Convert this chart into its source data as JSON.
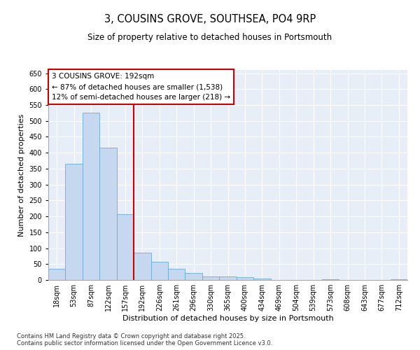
{
  "title": "3, COUSINS GROVE, SOUTHSEA, PO4 9RP",
  "subtitle": "Size of property relative to detached houses in Portsmouth",
  "xlabel": "Distribution of detached houses by size in Portsmouth",
  "ylabel": "Number of detached properties",
  "categories": [
    "18sqm",
    "53sqm",
    "87sqm",
    "122sqm",
    "157sqm",
    "192sqm",
    "226sqm",
    "261sqm",
    "296sqm",
    "330sqm",
    "365sqm",
    "400sqm",
    "434sqm",
    "469sqm",
    "504sqm",
    "539sqm",
    "573sqm",
    "608sqm",
    "643sqm",
    "677sqm",
    "712sqm"
  ],
  "values": [
    35,
    365,
    525,
    415,
    207,
    85,
    57,
    35,
    22,
    10,
    10,
    8,
    5,
    0,
    0,
    0,
    3,
    0,
    0,
    0,
    3
  ],
  "bar_color": "#c5d8f0",
  "bar_edge_color": "#6aaad4",
  "annotation_label": "3 COUSINS GROVE: 192sqm",
  "annotation_line1": "← 87% of detached houses are smaller (1,538)",
  "annotation_line2": "12% of semi-detached houses are larger (218) →",
  "annotation_box_color": "#ffffff",
  "annotation_box_edge": "#cc0000",
  "vline_color": "#cc0000",
  "vline_index": 5,
  "ylim": [
    0,
    660
  ],
  "yticks": [
    0,
    50,
    100,
    150,
    200,
    250,
    300,
    350,
    400,
    450,
    500,
    550,
    600,
    650
  ],
  "plot_bg_color": "#e8eef8",
  "footer_line1": "Contains HM Land Registry data © Crown copyright and database right 2025.",
  "footer_line2": "Contains public sector information licensed under the Open Government Licence v3.0.",
  "title_fontsize": 10.5,
  "subtitle_fontsize": 8.5,
  "axis_label_fontsize": 8,
  "tick_fontsize": 7,
  "annotation_fontsize": 7.5
}
